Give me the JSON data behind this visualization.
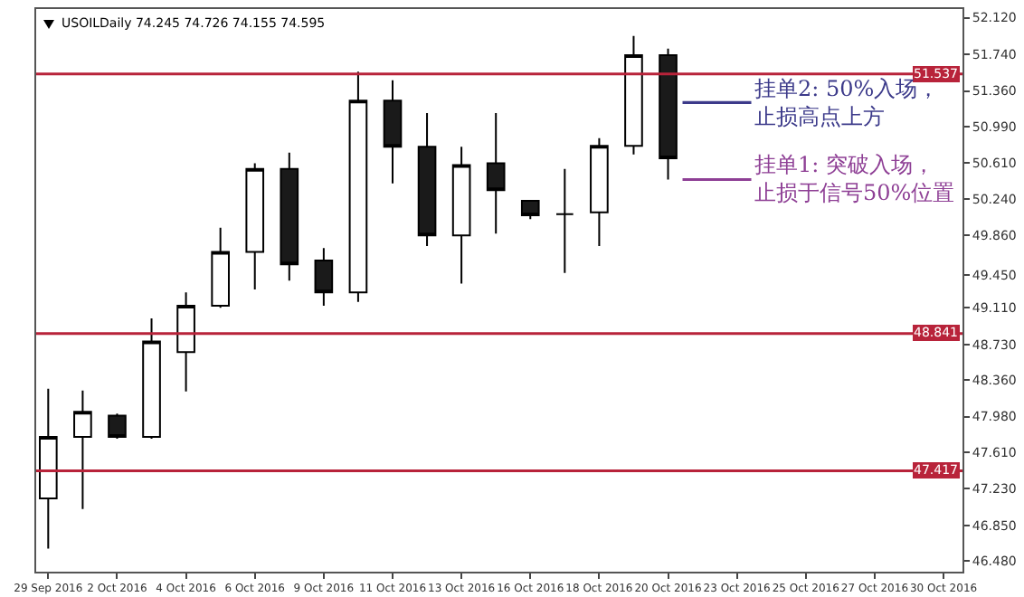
{
  "chart_data": {
    "type": "candlestick",
    "title": "USOILDaily 74.245 74.726 74.155 74.595",
    "categories": [
      "29 Sep 2016",
      null,
      "2 Oct 2016",
      null,
      "4 Oct 2016",
      null,
      "6 Oct 2016",
      null,
      "9 Oct 2016",
      null,
      "11 Oct 2016",
      null,
      "13 Oct 2016",
      null,
      "16 Oct 2016",
      null,
      "18 Oct 2016",
      null,
      "20 Oct 2016",
      null,
      "23 Oct 2016",
      null,
      "25 Oct 2016",
      null,
      "27 Oct 2016",
      null,
      "30 Oct 2016"
    ],
    "ohlc": [
      [
        47.13,
        48.27,
        46.61,
        47.77
      ],
      [
        47.77,
        48.25,
        47.02,
        48.03
      ],
      [
        47.99,
        48.01,
        47.75,
        47.77
      ],
      [
        47.77,
        49.0,
        47.75,
        48.76
      ],
      [
        48.65,
        49.27,
        48.24,
        49.13
      ],
      [
        49.13,
        49.94,
        49.11,
        49.69
      ],
      [
        49.69,
        50.61,
        49.3,
        50.55
      ],
      [
        50.55,
        50.72,
        49.39,
        49.56
      ],
      [
        49.6,
        49.73,
        49.13,
        49.27
      ],
      [
        49.27,
        51.56,
        49.17,
        51.26
      ],
      [
        51.26,
        51.47,
        50.4,
        50.78
      ],
      [
        50.78,
        51.13,
        49.75,
        49.86
      ],
      [
        49.86,
        50.78,
        49.36,
        50.59
      ],
      [
        50.61,
        51.13,
        49.88,
        50.33
      ],
      [
        50.22,
        50.23,
        50.03,
        50.07
      ],
      [
        50.08,
        50.55,
        49.47,
        50.08
      ],
      [
        50.1,
        50.87,
        49.75,
        50.79
      ],
      [
        50.79,
        51.93,
        50.7,
        51.73
      ],
      [
        51.73,
        51.8,
        50.44,
        50.66
      ],
      null,
      null,
      null,
      null,
      null,
      null,
      null,
      null
    ],
    "ylim": [
      46.37,
      52.21
    ],
    "yticks": [
      {
        "value": 46.48,
        "label": "46.480"
      },
      {
        "value": 46.85,
        "label": "46.850"
      },
      {
        "value": 47.23,
        "label": "47.230"
      },
      {
        "value": 47.61,
        "label": "47.610"
      },
      {
        "value": 47.98,
        "label": "47.980"
      },
      {
        "value": 48.36,
        "label": "48.360"
      },
      {
        "value": 48.73,
        "label": "48.730"
      },
      {
        "value": 49.11,
        "label": "49.110"
      },
      {
        "value": 49.45,
        "label": "49.450"
      },
      {
        "value": 49.86,
        "label": "49.860"
      },
      {
        "value": 50.24,
        "label": "50.240"
      },
      {
        "value": 50.61,
        "label": "50.610"
      },
      {
        "value": 50.99,
        "label": "50.990"
      },
      {
        "value": 51.36,
        "label": "51.360"
      },
      {
        "value": 51.74,
        "label": "51.740"
      },
      {
        "value": 52.12,
        "label": "52.120"
      }
    ],
    "ref_lines": [
      {
        "axis": "y",
        "value": 51.537,
        "label": "51.537",
        "color": "#b8233a"
      },
      {
        "axis": "y",
        "value": 48.841,
        "label": "48.841",
        "color": "#b8233a"
      },
      {
        "axis": "y",
        "value": 47.417,
        "label": "47.417",
        "color": "#b8233a"
      }
    ],
    "annotations": [
      {
        "text": "挂单2: 50%入场，止损高点上方",
        "x": "20 Oct 2016",
        "y": 51.24
      },
      {
        "text": "挂单1: 突破入场，止损于信号50%位置",
        "x": "20 Oct 2016",
        "y": 50.44
      }
    ],
    "grid": false,
    "legend": false
  }
}
